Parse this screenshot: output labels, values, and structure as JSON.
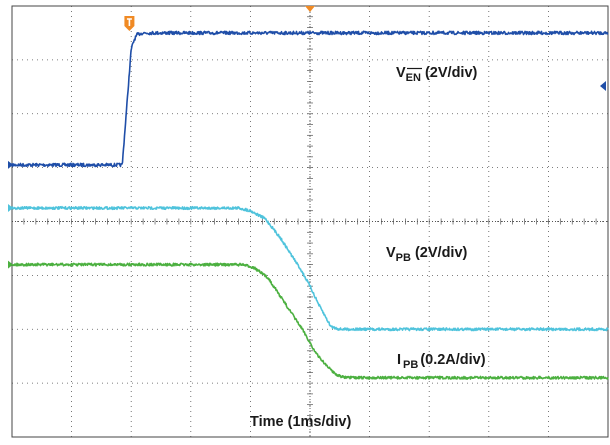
{
  "chart_data": {
    "type": "line",
    "grid": true,
    "x_unit_label": "Time (1ms/div)",
    "x_divisions": 10,
    "y_divisions": 8,
    "colors": {
      "ven": "#1f4ea8",
      "vpb": "#4fc3dc",
      "ipb": "#4cb040",
      "trigger": "#f08a24",
      "grid": "#555555"
    },
    "series": [
      {
        "name": "V_EN",
        "label_main": "V",
        "label_sub": "EN",
        "label_scale": " (2V/div)",
        "overline": true,
        "color_key": "ven",
        "x_div": [
          0,
          1.85,
          2.0,
          2.05,
          2.1,
          2.2,
          10
        ],
        "y_div": [
          1.05,
          1.05,
          3.2,
          3.37,
          3.47,
          3.5,
          3.5
        ]
      },
      {
        "name": "V_PB",
        "label_main": "V",
        "label_sub": "PB",
        "label_scale": " (2V/div)",
        "overline": false,
        "color_key": "vpb",
        "x_div": [
          0,
          3.8,
          4.0,
          4.25,
          4.5,
          4.85,
          5.0,
          5.15,
          5.35,
          5.5,
          10
        ],
        "y_div": [
          0.25,
          0.25,
          0.2,
          0.05,
          -0.3,
          -0.9,
          -1.2,
          -1.55,
          -1.95,
          -2.0,
          -2.0
        ]
      },
      {
        "name": "I_PB",
        "label_main": "I",
        "label_sub": "PB",
        "label_scale": "(0.2A/div)",
        "overline": false,
        "color_key": "ipb",
        "x_div": [
          0,
          3.85,
          4.05,
          4.3,
          4.6,
          4.9,
          5.1,
          5.3,
          5.45,
          5.6,
          10
        ],
        "y_div": [
          -0.8,
          -0.8,
          -0.85,
          -1.05,
          -1.55,
          -2.05,
          -2.45,
          -2.7,
          -2.85,
          -2.9,
          -2.9
        ]
      }
    ]
  }
}
